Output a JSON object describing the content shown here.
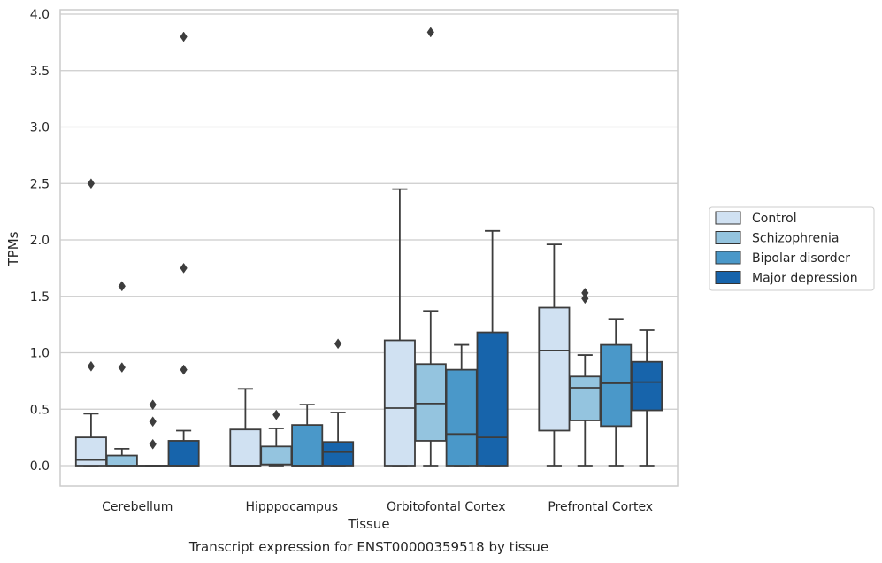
{
  "chart_data": {
    "type": "box",
    "title": "Transcript expression for ENST00000359518 by tissue",
    "xlabel": "Tissue",
    "ylabel": "TPMs",
    "ylim": [
      -0.19,
      4.05
    ],
    "yticks": [
      0.0,
      0.5,
      1.0,
      1.5,
      2.0,
      2.5,
      3.0,
      3.5,
      4.0
    ],
    "ytick_labels": [
      "0.0",
      "0.5",
      "1.0",
      "1.5",
      "2.0",
      "2.5",
      "3.0",
      "3.5",
      "4.0"
    ],
    "grid": "horizontal",
    "legend_position": "right",
    "categories": [
      "Cerebellum",
      "Hipppocampus",
      "Orbitofontal Cortex",
      "Prefrontal Cortex"
    ],
    "series": [
      {
        "name": "Control",
        "color": "#d0e1f2",
        "boxes": [
          {
            "whislo": 0.0,
            "q1": 0.0,
            "med": 0.05,
            "q3": 0.25,
            "whishi": 0.46,
            "fliers": [
              0.88,
              2.5
            ]
          },
          {
            "whislo": 0.0,
            "q1": 0.0,
            "med": 0.0,
            "q3": 0.32,
            "whishi": 0.68,
            "fliers": []
          },
          {
            "whislo": 0.0,
            "q1": 0.0,
            "med": 0.51,
            "q3": 1.11,
            "whishi": 2.45,
            "fliers": []
          },
          {
            "whislo": 0.0,
            "q1": 0.31,
            "med": 1.02,
            "q3": 1.4,
            "whishi": 1.96,
            "fliers": []
          }
        ]
      },
      {
        "name": "Schizophrenia",
        "color": "#94c4df",
        "boxes": [
          {
            "whislo": 0.0,
            "q1": 0.0,
            "med": 0.0,
            "q3": 0.09,
            "whishi": 0.15,
            "fliers": [
              0.87,
              1.59
            ]
          },
          {
            "whislo": 0.0,
            "q1": 0.01,
            "med": 0.01,
            "q3": 0.17,
            "whishi": 0.33,
            "fliers": [
              0.45
            ]
          },
          {
            "whislo": 0.0,
            "q1": 0.22,
            "med": 0.55,
            "q3": 0.9,
            "whishi": 1.37,
            "fliers": [
              3.84
            ]
          },
          {
            "whislo": 0.0,
            "q1": 0.4,
            "med": 0.69,
            "q3": 0.79,
            "whishi": 0.98,
            "fliers": [
              1.48,
              1.53
            ]
          }
        ]
      },
      {
        "name": "Bipolar disorder",
        "color": "#4a98c9",
        "boxes": [
          {
            "whislo": 0.0,
            "q1": 0.0,
            "med": 0.0,
            "q3": 0.0,
            "whishi": 0.0,
            "fliers": [
              0.19,
              0.39,
              0.54
            ]
          },
          {
            "whislo": 0.0,
            "q1": 0.0,
            "med": 0.0,
            "q3": 0.36,
            "whishi": 0.54,
            "fliers": []
          },
          {
            "whislo": 0.0,
            "q1": 0.0,
            "med": 0.28,
            "q3": 0.85,
            "whishi": 1.07,
            "fliers": []
          },
          {
            "whislo": 0.0,
            "q1": 0.35,
            "med": 0.73,
            "q3": 1.07,
            "whishi": 1.3,
            "fliers": []
          }
        ]
      },
      {
        "name": "Major depression",
        "color": "#1764ab",
        "boxes": [
          {
            "whislo": 0.0,
            "q1": 0.0,
            "med": 0.0,
            "q3": 0.22,
            "whishi": 0.31,
            "fliers": [
              0.85,
              1.75,
              3.8
            ]
          },
          {
            "whislo": 0.0,
            "q1": 0.0,
            "med": 0.12,
            "q3": 0.21,
            "whishi": 0.47,
            "fliers": [
              1.08
            ]
          },
          {
            "whislo": 0.0,
            "q1": 0.0,
            "med": 0.25,
            "q3": 1.18,
            "whishi": 2.08,
            "fliers": []
          },
          {
            "whislo": 0.0,
            "q1": 0.49,
            "med": 0.74,
            "q3": 0.92,
            "whishi": 1.2,
            "fliers": []
          }
        ]
      }
    ]
  }
}
